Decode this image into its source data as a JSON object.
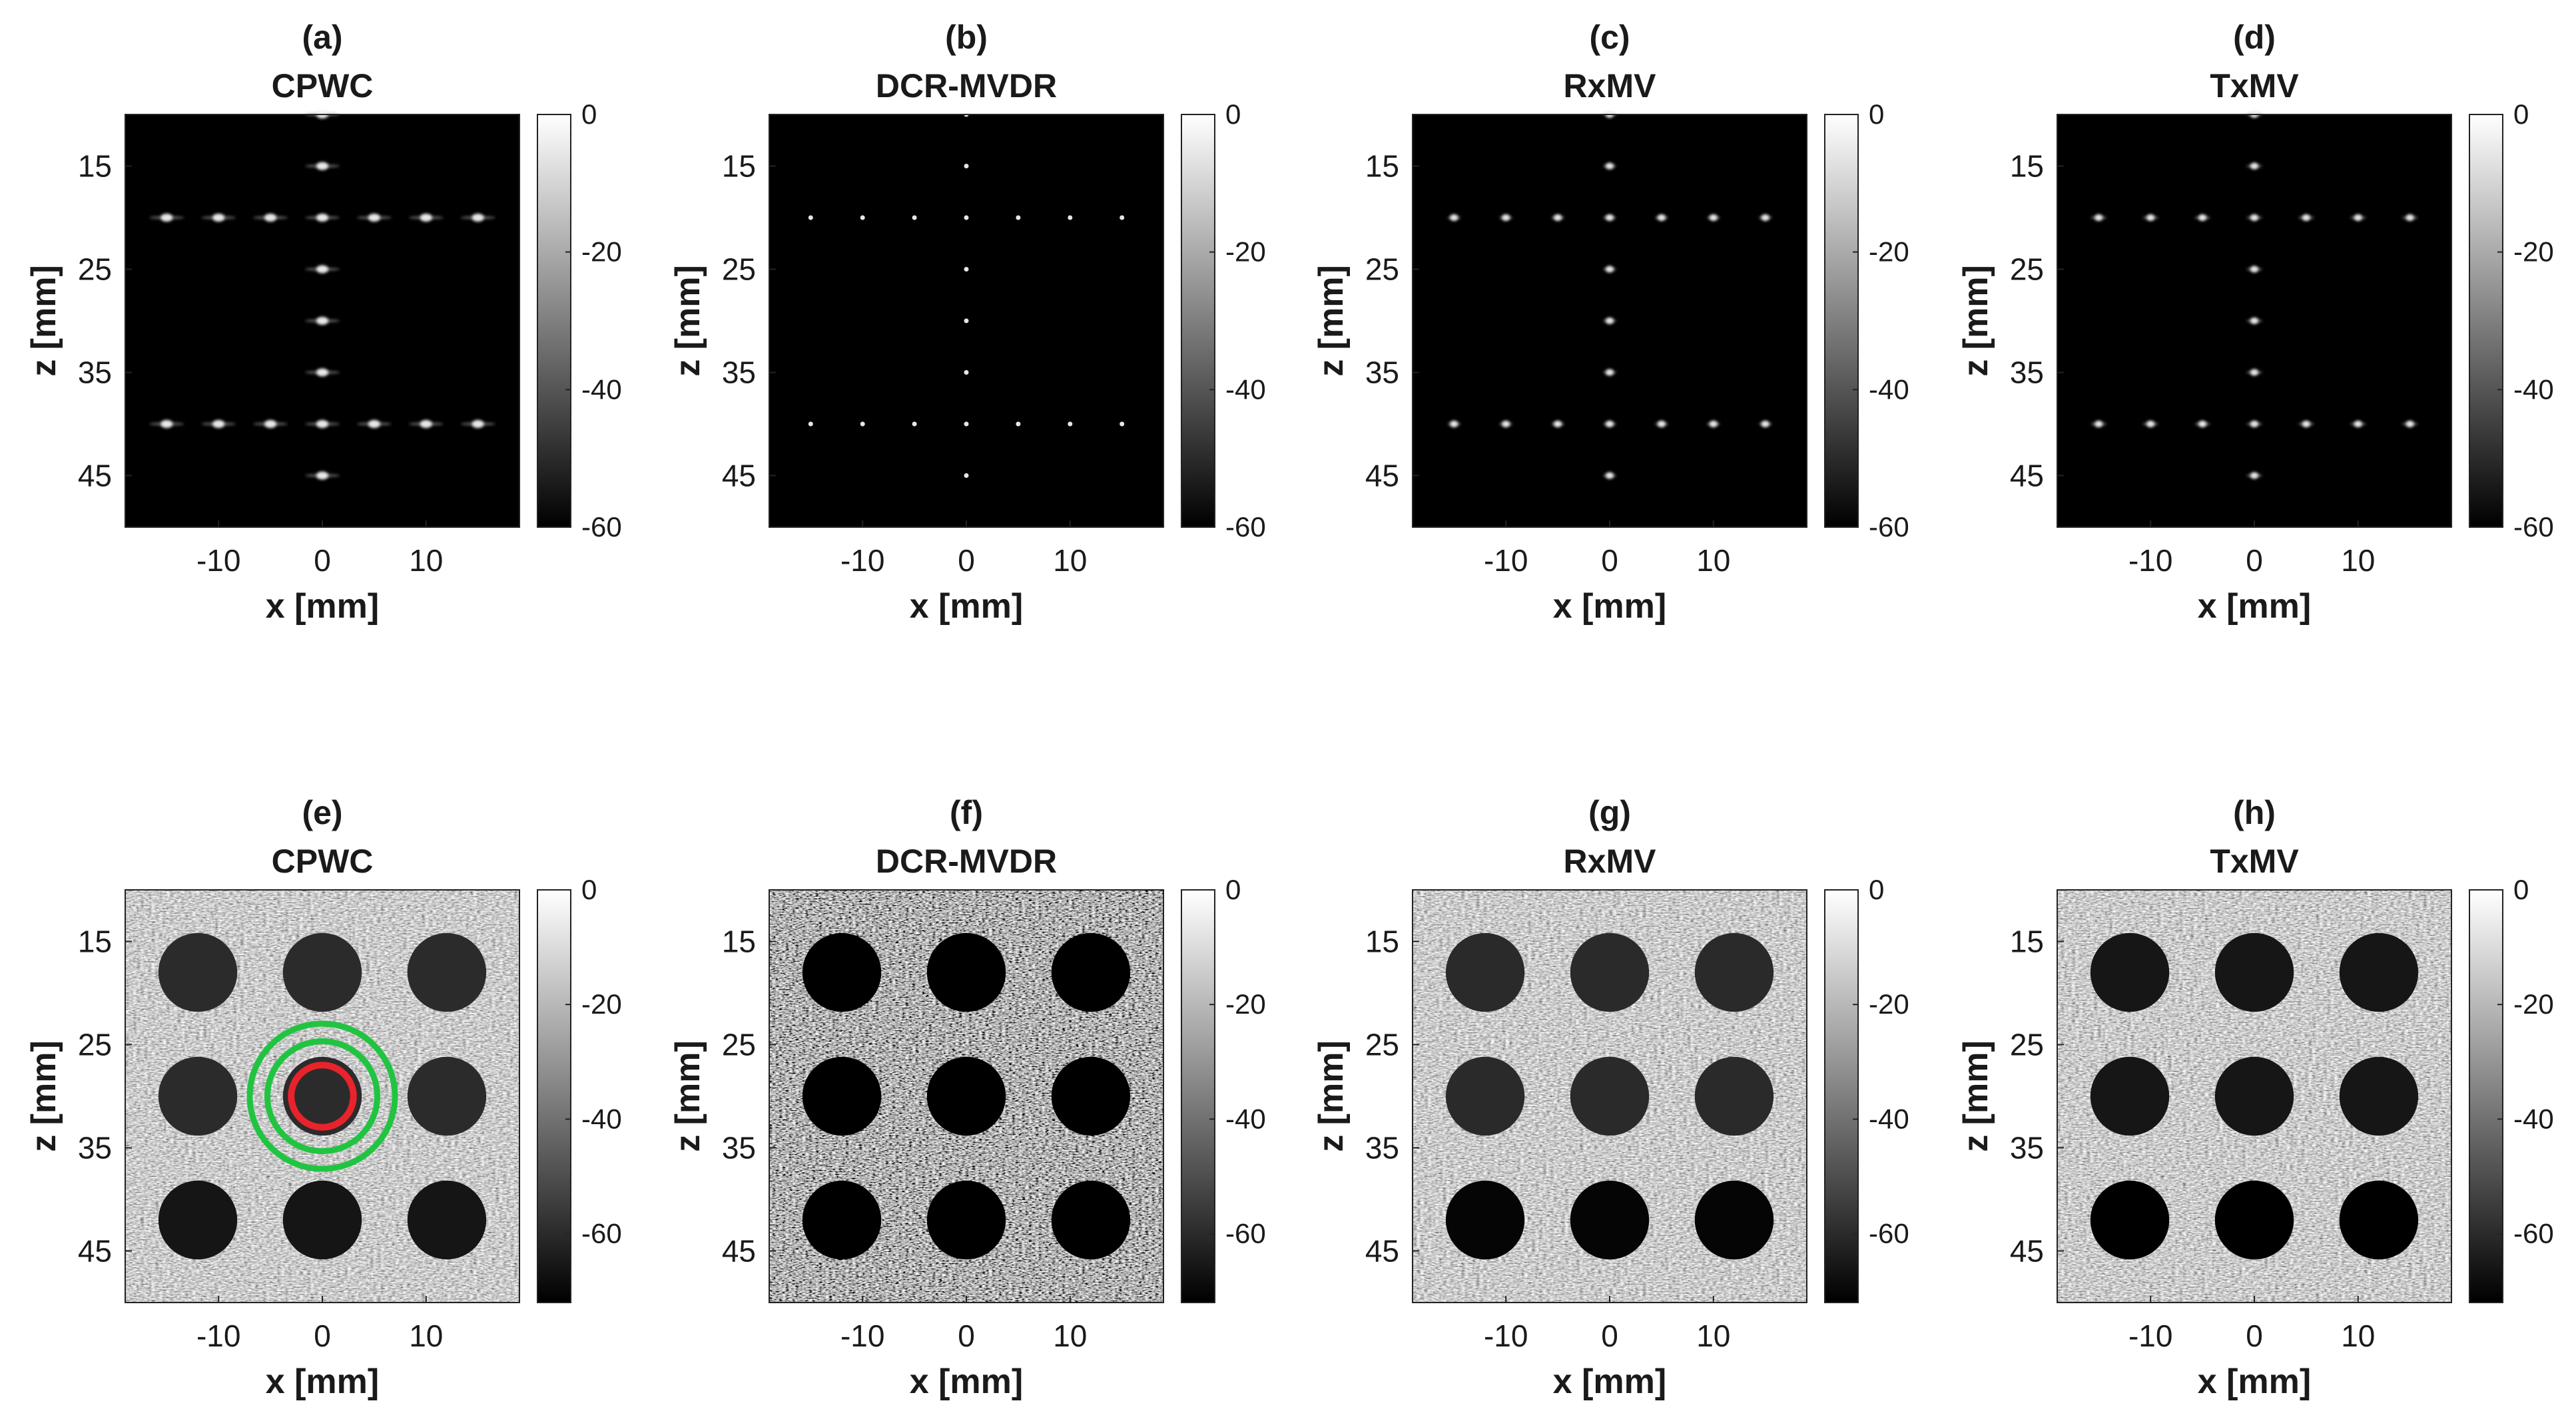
{
  "panels": [
    {
      "label": "(a)",
      "title": "CPWC",
      "kind": "points",
      "method": "cpwc"
    },
    {
      "label": "(b)",
      "title": "DCR-MVDR",
      "kind": "points",
      "method": "dcr"
    },
    {
      "label": "(c)",
      "title": "RxMV",
      "kind": "points",
      "method": "rxmv"
    },
    {
      "label": "(d)",
      "title": "TxMV",
      "kind": "points",
      "method": "txmv"
    },
    {
      "label": "(e)",
      "title": "CPWC",
      "kind": "cysts",
      "method": "cpwc",
      "roi": true
    },
    {
      "label": "(f)",
      "title": "DCR-MVDR",
      "kind": "cysts",
      "method": "dcr"
    },
    {
      "label": "(g)",
      "title": "RxMV",
      "kind": "cysts",
      "method": "rxmv"
    },
    {
      "label": "(h)",
      "title": "TxMV",
      "kind": "cysts",
      "method": "txmv"
    }
  ],
  "axes": {
    "xlabel": "x [mm]",
    "ylabel": "z [mm]",
    "xticks": [
      -10,
      0,
      10
    ],
    "xtick_labels": [
      "-10",
      "0",
      "10"
    ],
    "yticks": [
      15,
      25,
      35,
      45
    ],
    "ytick_labels": [
      "15",
      "25",
      "35",
      "45"
    ],
    "xlim": [
      -19,
      19
    ],
    "ylim": [
      10,
      50
    ]
  },
  "colorbars": {
    "points": {
      "range": [
        -60,
        0
      ],
      "ticks": [
        "0",
        "-20",
        "-40",
        "-60"
      ]
    },
    "cysts": {
      "range": [
        -72,
        0
      ],
      "ticks": [
        "0",
        "-20",
        "-40",
        "-60"
      ]
    }
  },
  "scatterers": {
    "lateral_rows_z": [
      20,
      40
    ],
    "lateral_x": [
      -15,
      -10,
      -5,
      0,
      5,
      10,
      15
    ],
    "axial_x": 0,
    "axial_z": [
      10,
      15,
      20,
      25,
      30,
      35,
      40,
      45
    ]
  },
  "cysts": {
    "centers_x": [
      -12,
      0,
      12
    ],
    "centers_z": [
      18,
      30,
      42
    ],
    "radius_mm": 3.8
  },
  "roi": {
    "center": [
      0,
      30
    ],
    "inner_radius_mm": 3.0,
    "outer_ring_radii_mm": [
      5.3,
      7.0
    ],
    "inner_color": "#e8232b",
    "outer_color": "#21c441"
  },
  "colors": {
    "colormap": "gray",
    "background": "#000000"
  }
}
